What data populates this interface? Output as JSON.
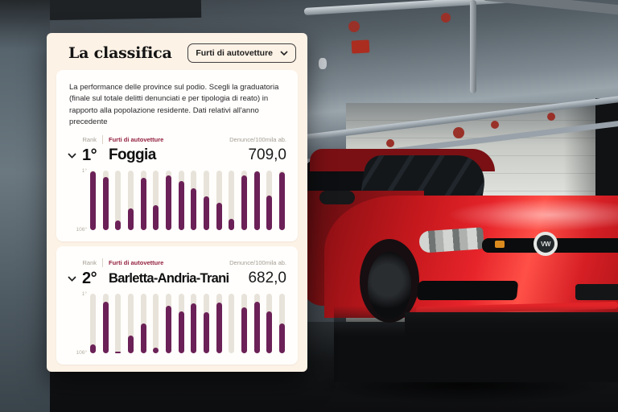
{
  "overlay": {
    "title": "La classifica",
    "dropdown": {
      "value": "Furti di autovetture"
    },
    "description": "La performance delle province sul podio. Scegli la graduatoria (finale sul totale delitti denunciati e per tipologia di reato) in rapporto alla popolazione residente. Dati relativi all'anno precedente",
    "columns": {
      "rank": "Rank",
      "category": "Furti di autovetture",
      "metric": "Denunce/100mila ab."
    }
  },
  "chart_data": [
    {
      "type": "bar",
      "rank_label": "1°",
      "name": "Foggia",
      "value": "709,0",
      "axis_top": "1°",
      "axis_bottom": "106°",
      "ylabel": "Rank (1° top — 106° bottom)",
      "bars_pct": [
        99,
        89,
        16,
        36,
        87,
        41,
        92,
        82,
        70,
        56,
        45,
        18,
        91,
        98,
        58,
        97
      ]
    },
    {
      "type": "bar",
      "rank_label": "2°",
      "name": "Barletta-Andria-Trani",
      "value": "682,0",
      "axis_top": "1°",
      "axis_bottom": "106°",
      "ylabel": "Rank (1° top — 106° bottom)",
      "bars_pct": [
        14,
        86,
        3,
        30,
        50,
        9,
        80,
        70,
        83,
        68,
        85,
        null,
        77,
        86,
        70,
        50
      ]
    }
  ],
  "icons": {
    "vw_logo_text": "VW"
  },
  "colors": {
    "panel_bg": "#fdf2e6",
    "card_bg": "#fffefc",
    "bar_fill": "#6b2157",
    "bar_track": "#e8e3da",
    "category_label": "#93203f",
    "car_red": "#e02428"
  }
}
